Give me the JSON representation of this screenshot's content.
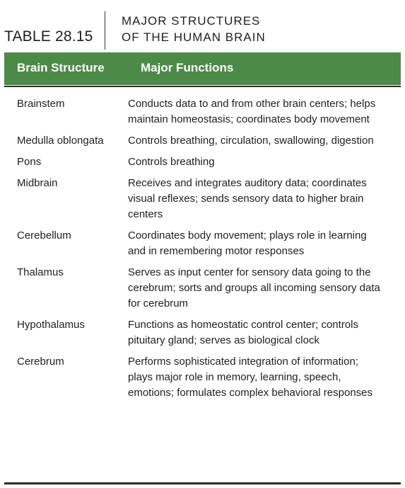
{
  "table": {
    "number": "TABLE 28.15",
    "title_line1": "MAJOR STRUCTURES",
    "title_line2": "OF THE HUMAN BRAIN",
    "header_color": "#4c8a47",
    "columns": {
      "structure": "Brain Structure",
      "functions": "Major Functions"
    },
    "rows": [
      {
        "structure": "Brainstem",
        "function": "Conducts data to and from other brain centers; helps maintain homeostasis; coordinates body movement"
      },
      {
        "structure": "Medulla oblongata",
        "function": "Controls breathing, circulation, swallowing, digestion"
      },
      {
        "structure": "Pons",
        "function": "Controls breathing"
      },
      {
        "structure": "Midbrain",
        "function": "Receives and integrates auditory data; coordinates visual reflexes; sends sensory data to higher brain centers"
      },
      {
        "structure": "Cerebellum",
        "function": "Coordinates body movement; plays role in learning and in remembering motor responses"
      },
      {
        "structure": "Thalamus",
        "function": "Serves as input center for sensory data going to the cerebrum; sorts and groups all incoming sensory data for cerebrum"
      },
      {
        "structure": "Hypothalamus",
        "function": "Functions as homeostatic control center; controls pituitary gland; serves as biological clock"
      },
      {
        "structure": "Cerebrum",
        "function": "Performs sophisticated integration of information; plays major role in memory, learning, speech, emotions; formulates complex behavioral responses"
      }
    ]
  }
}
